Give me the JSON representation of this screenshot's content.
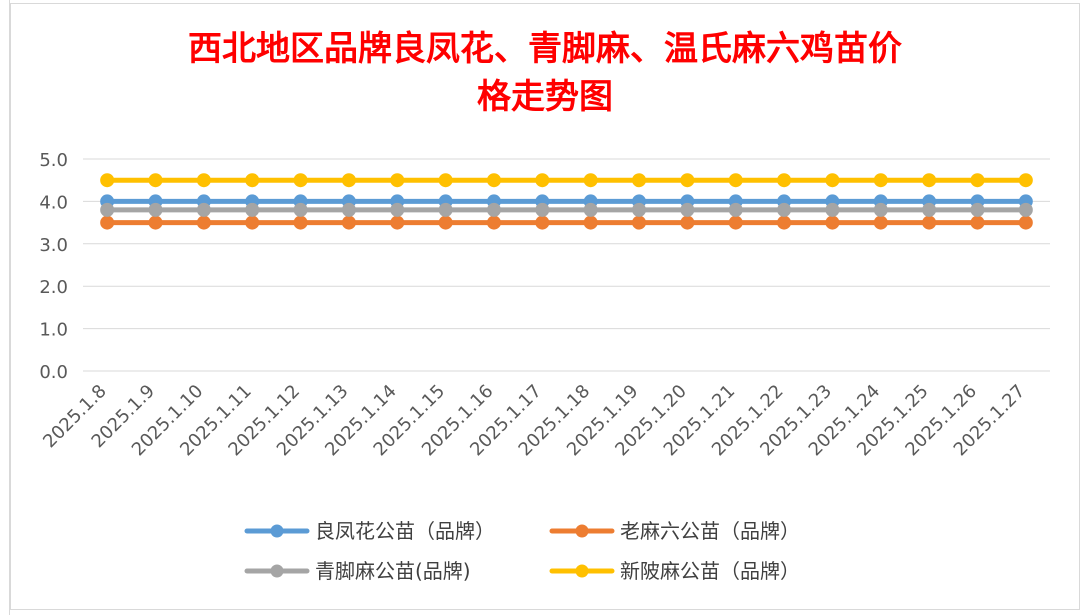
{
  "chart_data": {
    "type": "line",
    "title_line1": "西北地区品牌良凤花、青脚麻、温氏麻六鸡苗价",
    "title_line2": "格走势图",
    "categories": [
      "2025.1.8",
      "2025.1.9",
      "2025.1.10",
      "2025.1.11",
      "2025.1.12",
      "2025.1.13",
      "2025.1.14",
      "2025.1.15",
      "2025.1.16",
      "2025.1.17",
      "2025.1.18",
      "2025.1.19",
      "2025.1.20",
      "2025.1.21",
      "2025.1.22",
      "2025.1.23",
      "2025.1.24",
      "2025.1.25",
      "2025.1.26",
      "2025.1.27"
    ],
    "y_ticks": [
      "5.0",
      "4.0",
      "3.0",
      "2.0",
      "1.0",
      "0.0"
    ],
    "ylim": [
      0,
      5
    ],
    "grid": true,
    "legend_position": "bottom",
    "series": [
      {
        "name": "良凤花公苗（品牌）",
        "color": "#5b9bd5",
        "values": [
          4.0,
          4.0,
          4.0,
          4.0,
          4.0,
          4.0,
          4.0,
          4.0,
          4.0,
          4.0,
          4.0,
          4.0,
          4.0,
          4.0,
          4.0,
          4.0,
          4.0,
          4.0,
          4.0,
          4.0
        ]
      },
      {
        "name": "老麻六公苗（品牌）",
        "color": "#ed7d31",
        "values": [
          3.5,
          3.5,
          3.5,
          3.5,
          3.5,
          3.5,
          3.5,
          3.5,
          3.5,
          3.5,
          3.5,
          3.5,
          3.5,
          3.5,
          3.5,
          3.5,
          3.5,
          3.5,
          3.5,
          3.5
        ]
      },
      {
        "name": "青脚麻公苗(品牌)",
        "color": "#a5a5a5",
        "values": [
          3.8,
          3.8,
          3.8,
          3.8,
          3.8,
          3.8,
          3.8,
          3.8,
          3.8,
          3.8,
          3.8,
          3.8,
          3.8,
          3.8,
          3.8,
          3.8,
          3.8,
          3.8,
          3.8,
          3.8
        ]
      },
      {
        "name": "新陂麻公苗（品牌）",
        "color": "#ffc000",
        "values": [
          4.5,
          4.5,
          4.5,
          4.5,
          4.5,
          4.5,
          4.5,
          4.5,
          4.5,
          4.5,
          4.5,
          4.5,
          4.5,
          4.5,
          4.5,
          4.5,
          4.5,
          4.5,
          4.5,
          4.5
        ]
      }
    ]
  }
}
